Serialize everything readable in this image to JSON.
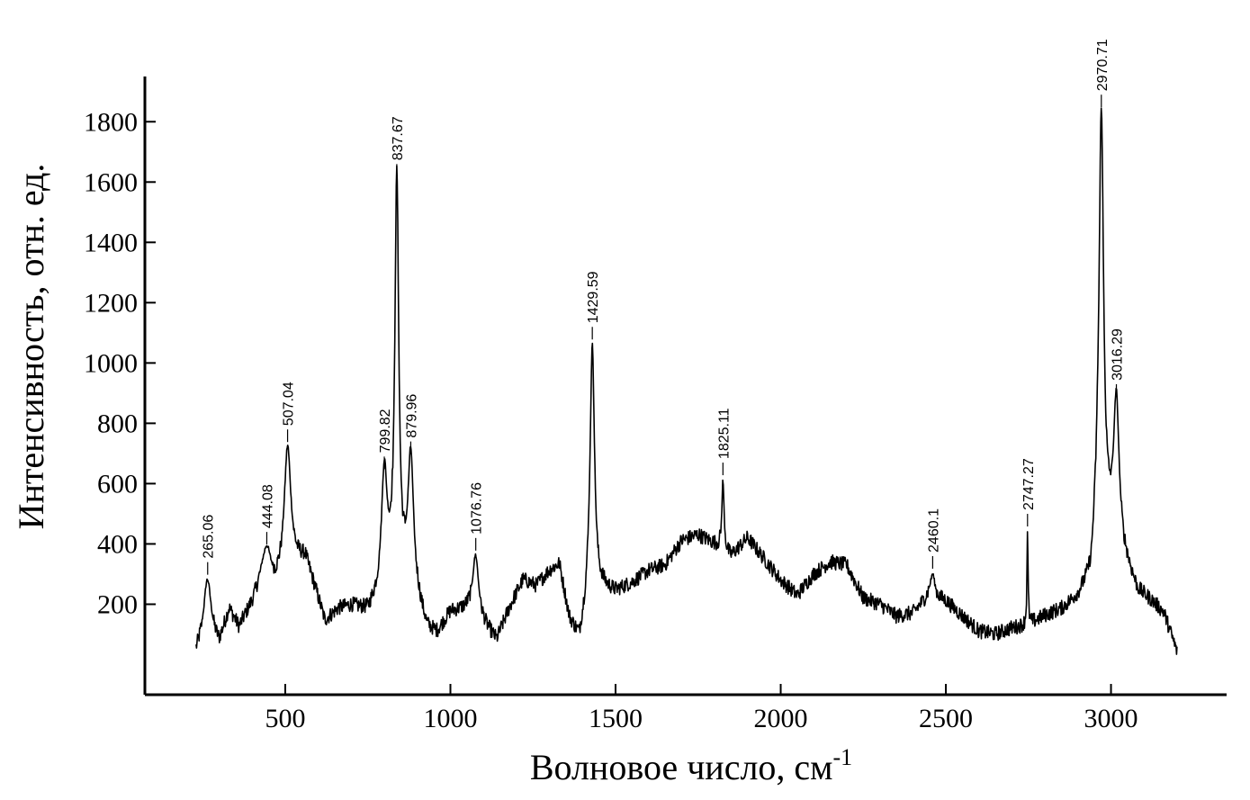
{
  "chart_data": {
    "type": "line",
    "xlabel": "Волновое число, см",
    "xlabel_superscript": "-1",
    "ylabel": "Интенсивность, отн. ед.",
    "xlim": [
      75,
      3350
    ],
    "ylim": [
      -100,
      1950
    ],
    "x_ticks": [
      500,
      1000,
      1500,
      2000,
      2500,
      3000
    ],
    "y_ticks": [
      200,
      400,
      600,
      800,
      1000,
      1200,
      1400,
      1600,
      1800
    ],
    "line_color": "#000000",
    "grid": false,
    "legend": "none",
    "series": [
      {
        "baseline": [
          [
            230,
            40
          ],
          [
            260,
            120
          ],
          [
            300,
            70
          ],
          [
            330,
            180
          ],
          [
            360,
            120
          ],
          [
            400,
            200
          ],
          [
            430,
            280
          ],
          [
            470,
            260
          ],
          [
            500,
            300
          ],
          [
            530,
            330
          ],
          [
            560,
            350
          ],
          [
            590,
            250
          ],
          [
            620,
            140
          ],
          [
            660,
            180
          ],
          [
            700,
            190
          ],
          [
            750,
            170
          ],
          [
            790,
            230
          ],
          [
            820,
            280
          ],
          [
            860,
            260
          ],
          [
            900,
            200
          ],
          [
            930,
            110
          ],
          [
            960,
            100
          ],
          [
            1000,
            170
          ],
          [
            1040,
            180
          ],
          [
            1070,
            190
          ],
          [
            1110,
            120
          ],
          [
            1140,
            80
          ],
          [
            1180,
            190
          ],
          [
            1220,
            280
          ],
          [
            1260,
            260
          ],
          [
            1300,
            310
          ],
          [
            1330,
            330
          ],
          [
            1360,
            150
          ],
          [
            1390,
            80
          ],
          [
            1420,
            220
          ],
          [
            1460,
            250
          ],
          [
            1500,
            240
          ],
          [
            1550,
            270
          ],
          [
            1600,
            310
          ],
          [
            1650,
            330
          ],
          [
            1700,
            410
          ],
          [
            1750,
            430
          ],
          [
            1800,
            400
          ],
          [
            1850,
            360
          ],
          [
            1900,
            420
          ],
          [
            1950,
            350
          ],
          [
            2000,
            280
          ],
          [
            2050,
            230
          ],
          [
            2100,
            300
          ],
          [
            2150,
            340
          ],
          [
            2200,
            330
          ],
          [
            2250,
            220
          ],
          [
            2300,
            200
          ],
          [
            2350,
            160
          ],
          [
            2400,
            170
          ],
          [
            2450,
            230
          ],
          [
            2500,
            210
          ],
          [
            2550,
            160
          ],
          [
            2600,
            110
          ],
          [
            2650,
            100
          ],
          [
            2700,
            120
          ],
          [
            2750,
            130
          ],
          [
            2800,
            160
          ],
          [
            2850,
            180
          ],
          [
            2900,
            220
          ],
          [
            2940,
            280
          ],
          [
            2960,
            500
          ],
          [
            3050,
            320
          ],
          [
            3080,
            240
          ],
          [
            3120,
            210
          ],
          [
            3160,
            170
          ],
          [
            3200,
            40
          ]
        ],
        "peaks": [
          [
            265.06,
            280,
            12
          ],
          [
            444.08,
            380,
            14
          ],
          [
            507.04,
            720,
            12
          ],
          [
            799.82,
            630,
            10
          ],
          [
            837.67,
            1600,
            7
          ],
          [
            879.96,
            680,
            10
          ],
          [
            1076.76,
            360,
            10
          ],
          [
            1429.59,
            1060,
            8
          ],
          [
            1825.11,
            610,
            4
          ],
          [
            2460.1,
            300,
            8
          ],
          [
            2747.27,
            440,
            2
          ],
          [
            2970.71,
            1830,
            8
          ],
          [
            3016.29,
            870,
            10
          ]
        ],
        "noise_amplitude": 25
      }
    ],
    "peak_labels": [
      "265.06",
      "444.08",
      "507.04",
      "799.82",
      "837.67",
      "879.96",
      "1076.76",
      "1429.59",
      "1825.11",
      "2460.1",
      "2747.27",
      "2970.71",
      "3016.29"
    ],
    "peak_label_values": [
      265.06,
      444.08,
      507.04,
      799.82,
      837.67,
      879.96,
      1076.76,
      1429.59,
      1825.11,
      2460.1,
      2747.27,
      2970.71,
      3016.29
    ]
  }
}
